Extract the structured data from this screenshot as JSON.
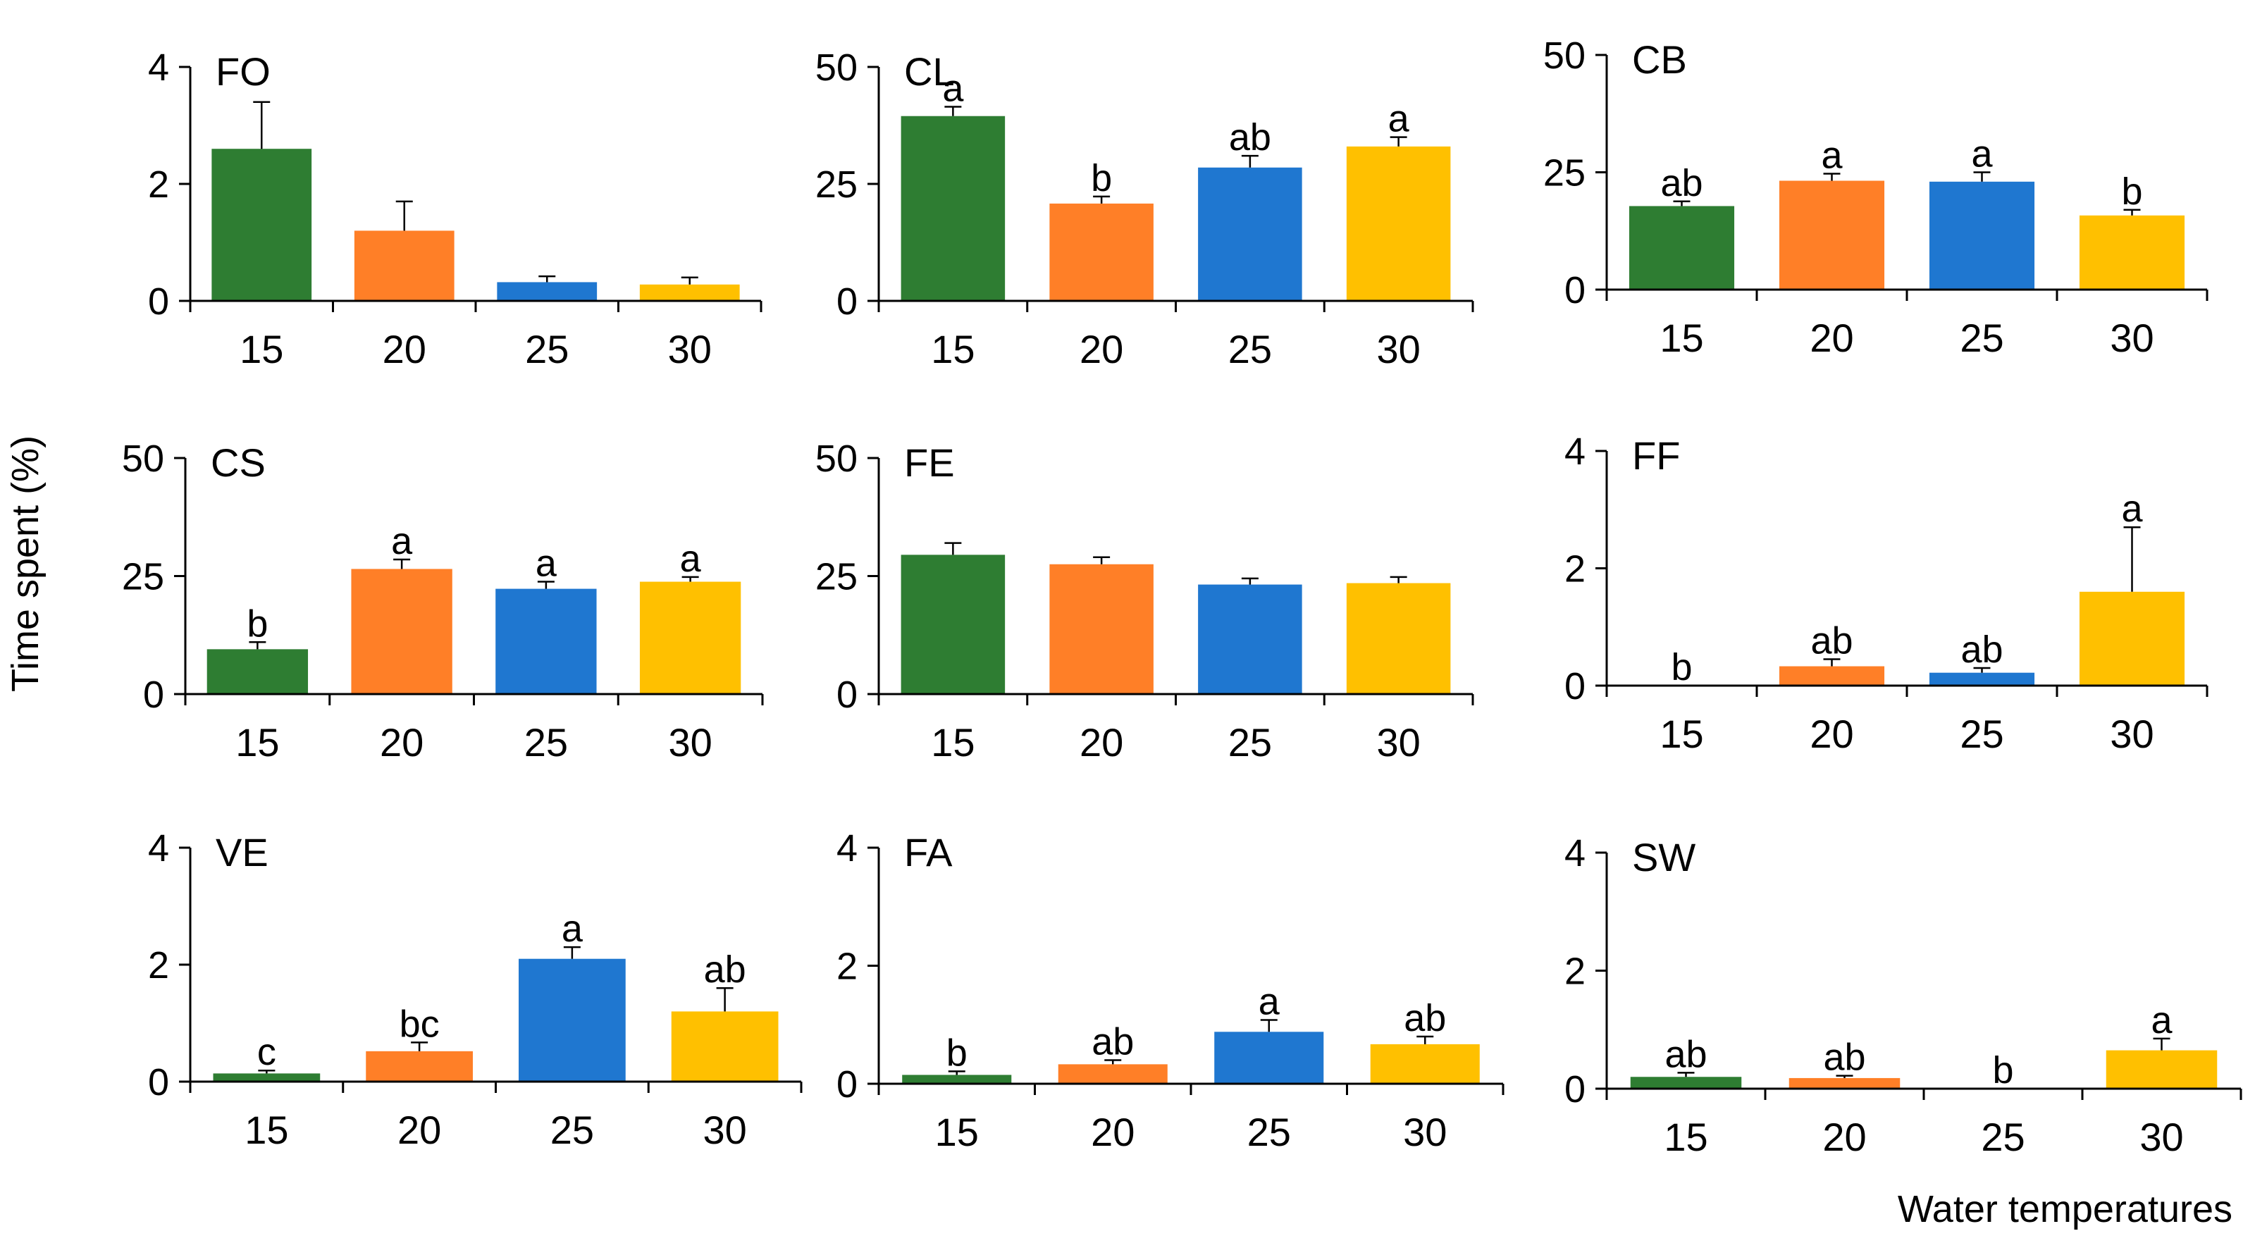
{
  "figure": {
    "ylabel": "Time spent (%)",
    "xlabel": "Water temperatures"
  },
  "chart_data": [
    {
      "type": "bar",
      "title": "FO",
      "categories": [
        "15",
        "20",
        "25",
        "30"
      ],
      "ylim": [
        0,
        4
      ],
      "yticks": [
        "0",
        "2",
        "4"
      ],
      "values": [
        2.6,
        1.2,
        0.32,
        0.28
      ],
      "errors": [
        0.8,
        0.5,
        0.1,
        0.12
      ],
      "letters": [
        "",
        "",
        "",
        ""
      ],
      "colors": [
        "#2e7d32",
        "#ff7f27",
        "#1f77d0",
        "#ffc000"
      ]
    },
    {
      "type": "bar",
      "title": "CL",
      "categories": [
        "15",
        "20",
        "25",
        "30"
      ],
      "ylim": [
        0,
        50
      ],
      "yticks": [
        "0",
        "25",
        "50"
      ],
      "values": [
        39.5,
        20.8,
        28.5,
        33.0
      ],
      "errors": [
        2.0,
        1.5,
        2.5,
        2.0
      ],
      "letters": [
        "a",
        "b",
        "ab",
        "a"
      ],
      "colors": [
        "#2e7d32",
        "#ff7f27",
        "#1f77d0",
        "#ffc000"
      ]
    },
    {
      "type": "bar",
      "title": "CB",
      "categories": [
        "15",
        "20",
        "25",
        "30"
      ],
      "ylim": [
        0,
        50
      ],
      "yticks": [
        "0",
        "25",
        "50"
      ],
      "values": [
        17.8,
        23.2,
        23.0,
        15.8
      ],
      "errors": [
        1.0,
        1.5,
        2.0,
        1.2
      ],
      "letters": [
        "ab",
        "a",
        "a",
        "b"
      ],
      "colors": [
        "#2e7d32",
        "#ff7f27",
        "#1f77d0",
        "#ffc000"
      ]
    },
    {
      "type": "bar",
      "title": "CS",
      "categories": [
        "15",
        "20",
        "25",
        "30"
      ],
      "ylim": [
        0,
        50
      ],
      "yticks": [
        "0",
        "25",
        "50"
      ],
      "values": [
        9.5,
        26.5,
        22.3,
        23.8
      ],
      "errors": [
        1.5,
        2.0,
        1.5,
        1.0
      ],
      "letters": [
        "b",
        "a",
        "a",
        "a"
      ],
      "colors": [
        "#2e7d32",
        "#ff7f27",
        "#1f77d0",
        "#ffc000"
      ]
    },
    {
      "type": "bar",
      "title": "FE",
      "categories": [
        "15",
        "20",
        "25",
        "30"
      ],
      "ylim": [
        0,
        50
      ],
      "yticks": [
        "0",
        "25",
        "50"
      ],
      "values": [
        29.5,
        27.5,
        23.2,
        23.5
      ],
      "errors": [
        2.5,
        1.5,
        1.3,
        1.3
      ],
      "letters": [
        "",
        "",
        "",
        ""
      ],
      "colors": [
        "#2e7d32",
        "#ff7f27",
        "#1f77d0",
        "#ffc000"
      ]
    },
    {
      "type": "bar",
      "title": "FF",
      "categories": [
        "15",
        "20",
        "25",
        "30"
      ],
      "ylim": [
        0,
        4
      ],
      "yticks": [
        "0",
        "2",
        "4"
      ],
      "values": [
        0,
        0.33,
        0.22,
        1.6
      ],
      "errors": [
        0,
        0.12,
        0.08,
        1.1
      ],
      "letters": [
        "b",
        "ab",
        "ab",
        "a"
      ],
      "colors": [
        "#2e7d32",
        "#ff7f27",
        "#1f77d0",
        "#ffc000"
      ]
    },
    {
      "type": "bar",
      "title": "VE",
      "categories": [
        "15",
        "20",
        "25",
        "30"
      ],
      "ylim": [
        0,
        4
      ],
      "yticks": [
        "0",
        "2",
        "4"
      ],
      "values": [
        0.14,
        0.52,
        2.1,
        1.2
      ],
      "errors": [
        0.05,
        0.15,
        0.2,
        0.4
      ],
      "letters": [
        "c",
        "bc",
        "a",
        "ab"
      ],
      "colors": [
        "#2e7d32",
        "#ff7f27",
        "#1f77d0",
        "#ffc000"
      ]
    },
    {
      "type": "bar",
      "title": "FA",
      "categories": [
        "15",
        "20",
        "25",
        "30"
      ],
      "ylim": [
        0,
        4
      ],
      "yticks": [
        "0",
        "2",
        "4"
      ],
      "values": [
        0.15,
        0.33,
        0.88,
        0.67
      ],
      "errors": [
        0.06,
        0.07,
        0.2,
        0.13
      ],
      "letters": [
        "b",
        "ab",
        "a",
        "ab"
      ],
      "colors": [
        "#2e7d32",
        "#ff7f27",
        "#1f77d0",
        "#ffc000"
      ]
    },
    {
      "type": "bar",
      "title": "SW",
      "categories": [
        "15",
        "20",
        "25",
        "30"
      ],
      "ylim": [
        0,
        4
      ],
      "yticks": [
        "0",
        "2",
        "4"
      ],
      "values": [
        0.2,
        0.18,
        0,
        0.65
      ],
      "errors": [
        0.07,
        0.04,
        0,
        0.2
      ],
      "letters": [
        "ab",
        "ab",
        "b",
        "a"
      ],
      "colors": [
        "#2e7d32",
        "#ff7f27",
        "#1f77d0",
        "#ffc000"
      ]
    }
  ]
}
